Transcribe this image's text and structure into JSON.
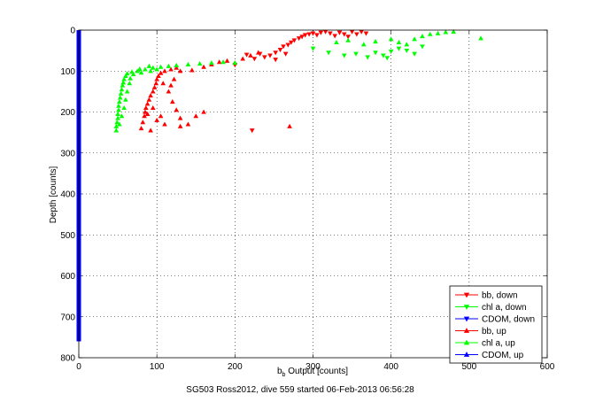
{
  "chart_data": {
    "type": "scatter",
    "xlabel_main": "b",
    "xlabel_sub": "b",
    "xlabel_rest": " Output [counts]",
    "ylabel": "Depth [counts]",
    "caption": "SG503 Ross2012, dive 559 started 06-Feb-2013 06:56:28",
    "xlim": [
      0,
      600
    ],
    "ylim": [
      0,
      800
    ],
    "y_reversed": true,
    "grid": true,
    "legend_position": "bottom-right",
    "x_ticks": [
      "0",
      "100",
      "200",
      "300",
      "400",
      "500",
      "600"
    ],
    "y_ticks": [
      "0",
      "100",
      "200",
      "300",
      "400",
      "500",
      "600",
      "700",
      "800"
    ],
    "series": [
      {
        "name": "bb, down",
        "color": "#ff0000",
        "marker": "triangle-down",
        "points": [
          [
            200,
            85
          ],
          [
            215,
            60
          ],
          [
            225,
            70
          ],
          [
            232,
            58
          ],
          [
            238,
            66
          ],
          [
            245,
            62
          ],
          [
            252,
            55
          ],
          [
            258,
            48
          ],
          [
            262,
            40
          ],
          [
            268,
            36
          ],
          [
            272,
            30
          ],
          [
            276,
            25
          ],
          [
            282,
            20
          ],
          [
            286,
            16
          ],
          [
            290,
            12
          ],
          [
            295,
            10
          ],
          [
            300,
            8
          ],
          [
            305,
            12
          ],
          [
            310,
            6
          ],
          [
            316,
            4
          ],
          [
            322,
            8
          ],
          [
            328,
            14
          ],
          [
            334,
            6
          ],
          [
            340,
            10
          ],
          [
            345,
            16
          ],
          [
            350,
            4
          ],
          [
            356,
            10
          ],
          [
            362,
            4
          ],
          [
            368,
            8
          ],
          [
            222,
            245
          ],
          [
            252,
            72
          ],
          [
            265,
            58
          ]
        ]
      },
      {
        "name": "chl a, down",
        "color": "#00ff00",
        "marker": "triangle-down",
        "points": [
          [
            300,
            45
          ],
          [
            320,
            55
          ],
          [
            340,
            62
          ],
          [
            355,
            58
          ],
          [
            370,
            66
          ],
          [
            390,
            62
          ],
          [
            400,
            52
          ],
          [
            410,
            45
          ],
          [
            420,
            50
          ],
          [
            430,
            58
          ],
          [
            440,
            40
          ],
          [
            395,
            68
          ],
          [
            380,
            55
          ]
        ]
      },
      {
        "name": "CDOM, down",
        "color": "#0000ff",
        "marker": "triangle-down",
        "points": []
      },
      {
        "name": "bb, up",
        "color": "#ff0000",
        "marker": "triangle-up",
        "points": [
          [
            80,
            240
          ],
          [
            82,
            225
          ],
          [
            84,
            210
          ],
          [
            85,
            200
          ],
          [
            86,
            190
          ],
          [
            88,
            180
          ],
          [
            90,
            170
          ],
          [
            92,
            160
          ],
          [
            95,
            150
          ],
          [
            97,
            140
          ],
          [
            99,
            130
          ],
          [
            100,
            120
          ],
          [
            102,
            112
          ],
          [
            105,
            105
          ],
          [
            110,
            100
          ],
          [
            118,
            96
          ],
          [
            125,
            92
          ],
          [
            130,
            100
          ],
          [
            120,
            175
          ],
          [
            125,
            195
          ],
          [
            130,
            215
          ],
          [
            110,
            230
          ],
          [
            105,
            210
          ],
          [
            100,
            220
          ],
          [
            115,
            150
          ],
          [
            118,
            135
          ],
          [
            122,
            120
          ],
          [
            108,
            130
          ],
          [
            95,
            190
          ],
          [
            88,
            205
          ],
          [
            150,
            210
          ],
          [
            145,
            98
          ],
          [
            160,
            90
          ],
          [
            170,
            84
          ],
          [
            180,
            78
          ],
          [
            190,
            75
          ],
          [
            200,
            80
          ],
          [
            210,
            70
          ],
          [
            220,
            62
          ],
          [
            230,
            55
          ],
          [
            270,
            235
          ],
          [
            140,
            230
          ],
          [
            160,
            200
          ],
          [
            130,
            235
          ],
          [
            92,
            245
          ]
        ]
      },
      {
        "name": "chl a, up",
        "color": "#00ff00",
        "marker": "triangle-up",
        "points": [
          [
            48,
            245
          ],
          [
            48,
            235
          ],
          [
            49,
            225
          ],
          [
            50,
            215
          ],
          [
            50,
            205
          ],
          [
            51,
            195
          ],
          [
            51,
            185
          ],
          [
            52,
            175
          ],
          [
            53,
            165
          ],
          [
            54,
            155
          ],
          [
            55,
            145
          ],
          [
            56,
            135
          ],
          [
            57,
            128
          ],
          [
            58,
            120
          ],
          [
            60,
            112
          ],
          [
            62,
            106
          ],
          [
            68,
            102
          ],
          [
            75,
            100
          ],
          [
            85,
            96
          ],
          [
            95,
            92
          ],
          [
            105,
            90
          ],
          [
            115,
            88
          ],
          [
            125,
            86
          ],
          [
            140,
            84
          ],
          [
            155,
            82
          ],
          [
            170,
            80
          ],
          [
            185,
            78
          ],
          [
            200,
            80
          ],
          [
            52,
            230
          ],
          [
            55,
            210
          ],
          [
            58,
            190
          ],
          [
            60,
            170
          ],
          [
            62,
            150
          ],
          [
            65,
            130
          ],
          [
            66,
            118
          ],
          [
            70,
            108
          ],
          [
            80,
            104
          ],
          [
            92,
            100
          ],
          [
            100,
            96
          ],
          [
            78,
            95
          ],
          [
            90,
            88
          ],
          [
            430,
            22
          ],
          [
            440,
            15
          ],
          [
            450,
            10
          ],
          [
            460,
            8
          ],
          [
            470,
            5
          ],
          [
            480,
            4
          ],
          [
            515,
            20
          ],
          [
            410,
            30
          ],
          [
            420,
            35
          ],
          [
            380,
            28
          ],
          [
            365,
            35
          ],
          [
            345,
            25
          ],
          [
            330,
            30
          ],
          [
            400,
            22
          ]
        ]
      },
      {
        "name": "CDOM, up",
        "color": "#0000ff",
        "marker": "triangle-up",
        "points": []
      }
    ],
    "vertical_bar": {
      "color": "#0000ff",
      "x": 0,
      "y_from": 0,
      "y_to": 760
    }
  }
}
